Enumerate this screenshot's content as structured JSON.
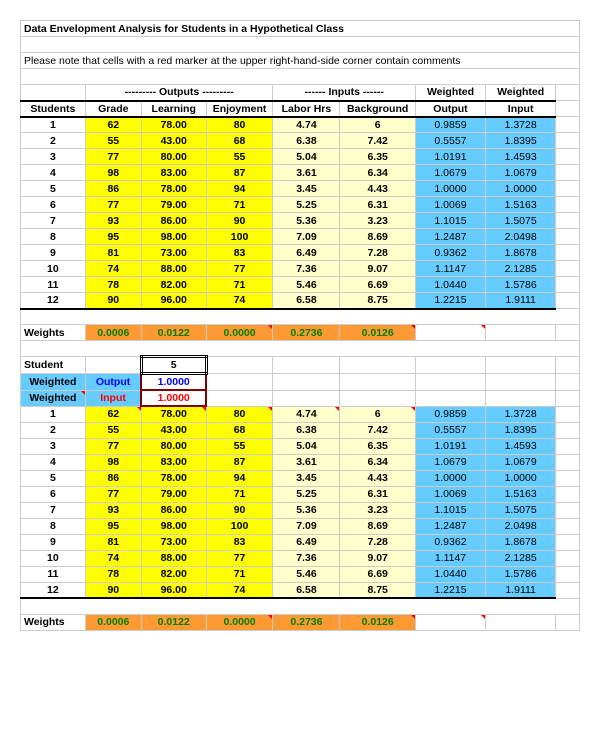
{
  "title": "Data Envelopment Analysis for Students in a Hypothetical Class",
  "note": "Please note that cells with a red marker at the upper right-hand-side corner contain comments",
  "group_headers": {
    "outputs": "--------- Outputs ---------",
    "inputs": "------ Inputs ------",
    "wout": "Weighted",
    "win": "Weighted"
  },
  "col_headers": {
    "students": "Students",
    "grade": "Grade",
    "learning": "Learning",
    "enjoyment": "Enjoyment",
    "labor": "Labor Hrs",
    "background": "Background",
    "wout": "Output",
    "win": "Input"
  },
  "rows": [
    {
      "s": "1",
      "g": "62",
      "l": "78.00",
      "e": "80",
      "lh": "4.74",
      "b": "6",
      "wo": "0.9859",
      "wi": "1.3728"
    },
    {
      "s": "2",
      "g": "55",
      "l": "43.00",
      "e": "68",
      "lh": "6.38",
      "b": "7.42",
      "wo": "0.5557",
      "wi": "1.8395"
    },
    {
      "s": "3",
      "g": "77",
      "l": "80.00",
      "e": "55",
      "lh": "5.04",
      "b": "6.35",
      "wo": "1.0191",
      "wi": "1.4593"
    },
    {
      "s": "4",
      "g": "98",
      "l": "83.00",
      "e": "87",
      "lh": "3.61",
      "b": "6.34",
      "wo": "1.0679",
      "wi": "1.0679"
    },
    {
      "s": "5",
      "g": "86",
      "l": "78.00",
      "e": "94",
      "lh": "3.45",
      "b": "4.43",
      "wo": "1.0000",
      "wi": "1.0000"
    },
    {
      "s": "6",
      "g": "77",
      "l": "79.00",
      "e": "71",
      "lh": "5.25",
      "b": "6.31",
      "wo": "1.0069",
      "wi": "1.5163"
    },
    {
      "s": "7",
      "g": "93",
      "l": "86.00",
      "e": "90",
      "lh": "5.36",
      "b": "3.23",
      "wo": "1.1015",
      "wi": "1.5075"
    },
    {
      "s": "8",
      "g": "95",
      "l": "98.00",
      "e": "100",
      "lh": "7.09",
      "b": "8.69",
      "wo": "1.2487",
      "wi": "2.0498"
    },
    {
      "s": "9",
      "g": "81",
      "l": "73.00",
      "e": "83",
      "lh": "6.49",
      "b": "7.28",
      "wo": "0.9362",
      "wi": "1.8678"
    },
    {
      "s": "10",
      "g": "74",
      "l": "88.00",
      "e": "77",
      "lh": "7.36",
      "b": "9.07",
      "wo": "1.1147",
      "wi": "2.1285"
    },
    {
      "s": "11",
      "g": "78",
      "l": "82.00",
      "e": "71",
      "lh": "5.46",
      "b": "6.69",
      "wo": "1.0440",
      "wi": "1.5786"
    },
    {
      "s": "12",
      "g": "90",
      "l": "96.00",
      "e": "74",
      "lh": "6.58",
      "b": "8.75",
      "wo": "1.2215",
      "wi": "1.9111"
    }
  ],
  "weights_label": "Weights",
  "weights": {
    "g": "0.0006",
    "l": "0.0122",
    "e": "0.0000",
    "lh": "0.2736",
    "b": "0.0126"
  },
  "student_section": {
    "label": "Student",
    "value": "5",
    "wout_label": "Weighted",
    "wout_sub": "Output",
    "wout_val": "1.0000",
    "win_label": "Weighted",
    "win_sub": "Input",
    "win_val": "1.0000"
  },
  "colors": {
    "yellow": "#ffff00",
    "lightyellow": "#ffffcc",
    "cyan": "#66ccff",
    "orange": "#ff9933"
  }
}
